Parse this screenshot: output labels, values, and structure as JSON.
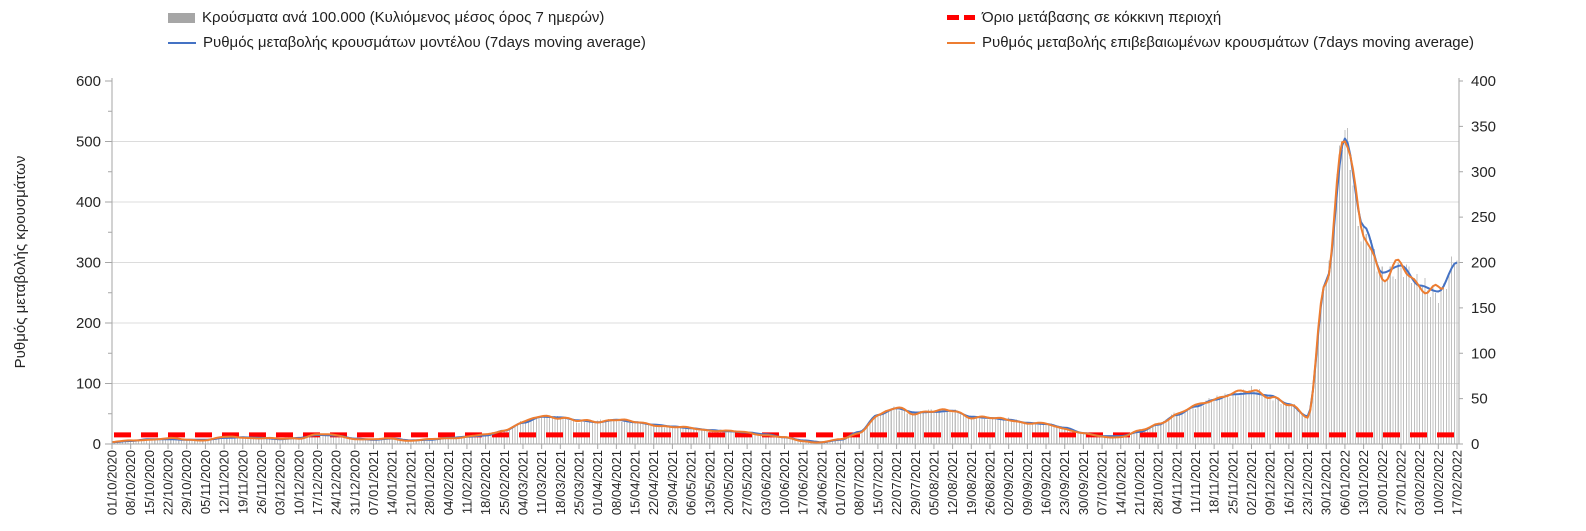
{
  "page": {
    "background": "#ffffff"
  },
  "chart_data": {
    "type": "bar+line",
    "title": "",
    "legend_position": "top",
    "grid": "horizontal, every 100 (left axis)",
    "x_axis": {
      "label": "",
      "tick_interval": "7 days",
      "span_days": 504,
      "tick_labels": [
        "01/10/2020",
        "08/10/2020",
        "15/10/2020",
        "22/10/2020",
        "29/10/2020",
        "05/11/2020",
        "12/11/2020",
        "19/11/2020",
        "26/11/2020",
        "03/12/2020",
        "10/12/2020",
        "17/12/2020",
        "24/12/2020",
        "31/12/2020",
        "07/01/2021",
        "14/01/2021",
        "21/01/2021",
        "28/01/2021",
        "04/02/2021",
        "11/02/2021",
        "18/02/2021",
        "25/02/2021",
        "04/03/2021",
        "11/03/2021",
        "18/03/2021",
        "25/03/2021",
        "01/04/2021",
        "08/04/2021",
        "15/04/2021",
        "22/04/2021",
        "29/04/2021",
        "06/05/2021",
        "13/05/2021",
        "20/05/2021",
        "27/05/2021",
        "03/06/2021",
        "10/06/2021",
        "17/06/2021",
        "24/06/2021",
        "01/07/2021",
        "08/07/2021",
        "15/07/2021",
        "22/07/2021",
        "29/07/2021",
        "05/08/2021",
        "12/08/2021",
        "19/08/2021",
        "26/08/2021",
        "02/09/2021",
        "09/09/2021",
        "16/09/2021",
        "23/09/2021",
        "30/09/2021",
        "07/10/2021",
        "14/10/2021",
        "21/10/2021",
        "28/10/2021",
        "04/11/2021",
        "11/11/2021",
        "18/11/2021",
        "25/11/2021",
        "02/12/2021",
        "09/12/2021",
        "16/12/2021",
        "23/12/2021",
        "30/12/2021",
        "06/01/2022",
        "13/01/2022",
        "20/01/2022",
        "27/01/2022",
        "03/02/2022",
        "10/02/2022",
        "17/02/2022"
      ]
    },
    "y_axis_left": {
      "label": "Ρυθμός μεταβολής κρουσμάτων",
      "min": 0,
      "max": 600,
      "major_step": 100,
      "minor_step": 50
    },
    "y_axis_right": {
      "label": "",
      "min": 0,
      "max": 400,
      "major_step": 50
    },
    "series": [
      {
        "name": "Κρούσματα ανά 100.000 (Κυλιόμενος μέσος όρος 7 ημερών)",
        "type": "bar",
        "axis": "right",
        "color": "#c0c0c0",
        "weekly_values": [
          2,
          3,
          5,
          6,
          5,
          5,
          7,
          7,
          7,
          5,
          7,
          11,
          9,
          6,
          5,
          6,
          4,
          5,
          7,
          8,
          10,
          15,
          24,
          31,
          29,
          25,
          25,
          27,
          24,
          21,
          19,
          17,
          15,
          14,
          13,
          10,
          7,
          3,
          2,
          5,
          13,
          31,
          40,
          34,
          36,
          37,
          29,
          29,
          27,
          23,
          22,
          17,
          11,
          8,
          8,
          14,
          22,
          33,
          42,
          49,
          56,
          59,
          53,
          43,
          30,
          183,
          341,
          233,
          183,
          199,
          172,
          170,
          200
        ]
      },
      {
        "name": "Ρυθμός μεταβολής κρουσμάτων μοντέλου (7days moving average)",
        "type": "line",
        "axis": "left",
        "color": "#4472c4",
        "weekly_values": [
          3,
          5,
          8,
          8,
          7,
          7,
          10,
          11,
          10,
          8,
          10,
          15,
          14,
          9,
          7,
          9,
          6,
          7,
          10,
          12,
          14,
          22,
          35,
          45,
          44,
          39,
          36,
          40,
          36,
          32,
          29,
          26,
          23,
          21,
          19,
          16,
          11,
          6,
          3,
          7,
          20,
          48,
          59,
          52,
          53,
          55,
          45,
          43,
          40,
          35,
          33,
          27,
          18,
          13,
          13,
          20,
          32,
          48,
          62,
          73,
          82,
          84,
          80,
          66,
          46,
          270,
          505,
          360,
          283,
          295,
          262,
          252,
          300
        ]
      },
      {
        "name": "Ρυθμός μεταβολής επιβεβαιωμένων κρουσμάτων (7days moving average)",
        "type": "line",
        "axis": "left",
        "color": "#ed7d31",
        "ends_at_day": 499,
        "weekly_values": [
          3,
          5,
          8,
          9,
          7,
          7,
          11,
          11,
          10,
          8,
          10,
          16,
          14,
          9,
          7,
          9,
          6,
          7,
          10,
          12,
          15,
          23,
          36,
          46,
          44,
          38,
          37,
          41,
          36,
          32,
          28,
          26,
          23,
          21,
          19,
          15,
          10,
          5,
          3,
          7,
          19,
          47,
          60,
          51,
          54,
          56,
          44,
          43,
          41,
          34,
          33,
          26,
          17,
          12,
          12,
          21,
          33,
          49,
          63,
          74,
          84,
          88,
          79,
          65,
          45,
          275,
          512,
          350,
          275,
          298,
          258,
          255,
          null
        ]
      },
      {
        "name": "Όριο μετάβασης σε κόκκινη περιοχή",
        "type": "threshold",
        "axis": "left",
        "color": "#ff0000",
        "value": 15
      }
    ]
  },
  "legend": {
    "row1_left": "Κρούσματα ανά 100.000 (Κυλιόμενος μέσος όρος 7 ημερών)",
    "row1_right": "Όριο μετάβασης σε κόκκινη περιοχή",
    "row2_left": "Ρυθμός μεταβολής κρουσμάτων μοντέλου (7days moving average)",
    "row2_right": "Ρυθμός μεταβολής επιβεβαιωμένων κρουσμάτων (7days moving average)"
  }
}
